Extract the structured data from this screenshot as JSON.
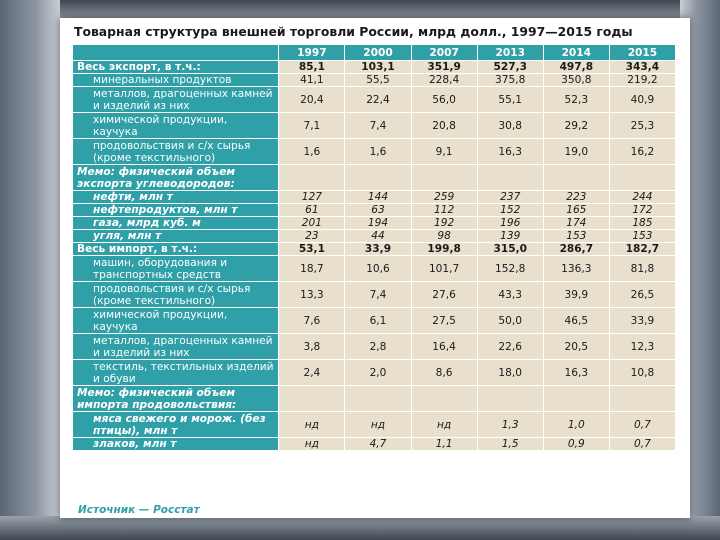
{
  "title": "Товарная структура внешней торговли России, млрд долл., 1997—2015 годы",
  "years": [
    "1997",
    "2000",
    "2007",
    "2013",
    "2014",
    "2015"
  ],
  "rows": [
    {
      "label": "Весь экспорт, в т.ч.:",
      "kind": "main",
      "values": [
        "85,1",
        "103,1",
        "351,9",
        "527,3",
        "497,8",
        "343,4"
      ]
    },
    {
      "label": "минеральных продуктов",
      "kind": "sub",
      "values": [
        "41,1",
        "55,5",
        "228,4",
        "375,8",
        "350,8",
        "219,2"
      ]
    },
    {
      "label": "металлов, драгоценных камней и изделий из них",
      "kind": "sub",
      "values": [
        "20,4",
        "22,4",
        "56,0",
        "55,1",
        "52,3",
        "40,9"
      ]
    },
    {
      "label": "химической продукции, каучука",
      "kind": "sub",
      "values": [
        "7,1",
        "7,4",
        "20,8",
        "30,8",
        "29,2",
        "25,3"
      ]
    },
    {
      "label": "продовольствия и с/х сырья (кроме текстильного)",
      "kind": "sub",
      "values": [
        "1,6",
        "1,6",
        "9,1",
        "16,3",
        "19,0",
        "16,2"
      ]
    },
    {
      "label": "Мемо: физический объем экспорта углеводородов:",
      "kind": "memo",
      "values": [
        "",
        "",
        "",
        "",
        "",
        ""
      ]
    },
    {
      "label": "нефти, млн т",
      "kind": "memosub",
      "values": [
        "127",
        "144",
        "259",
        "237",
        "223",
        "244"
      ]
    },
    {
      "label": "нефтепродуктов, млн т",
      "kind": "memosub",
      "values": [
        "61",
        "63",
        "112",
        "152",
        "165",
        "172"
      ]
    },
    {
      "label": "газа, млрд куб. м",
      "kind": "memosub",
      "values": [
        "201",
        "194",
        "192",
        "196",
        "174",
        "185"
      ]
    },
    {
      "label": "угля, млн т",
      "kind": "memosub",
      "values": [
        "23",
        "44",
        "98",
        "139",
        "153",
        "153"
      ]
    },
    {
      "label": "Весь импорт, в т.ч.:",
      "kind": "main",
      "values": [
        "53,1",
        "33,9",
        "199,8",
        "315,0",
        "286,7",
        "182,7"
      ]
    },
    {
      "label": "машин, оборудования и транспортных средств",
      "kind": "sub",
      "values": [
        "18,7",
        "10,6",
        "101,7",
        "152,8",
        "136,3",
        "81,8"
      ]
    },
    {
      "label": "продовольствия и с/х сырья (кроме текстильного)",
      "kind": "sub",
      "values": [
        "13,3",
        "7,4",
        "27,6",
        "43,3",
        "39,9",
        "26,5"
      ]
    },
    {
      "label": "химической продукции, каучука",
      "kind": "sub",
      "values": [
        "7,6",
        "6,1",
        "27,5",
        "50,0",
        "46,5",
        "33,9"
      ]
    },
    {
      "label": "металлов, драгоценных камней и изделий из них",
      "kind": "sub",
      "values": [
        "3,8",
        "2,8",
        "16,4",
        "22,6",
        "20,5",
        "12,3"
      ]
    },
    {
      "label": "текстиль, текстильных изделий и обуви",
      "kind": "sub",
      "values": [
        "2,4",
        "2,0",
        "8,6",
        "18,0",
        "16,3",
        "10,8"
      ]
    },
    {
      "label": "Мемо: физический объем импорта продовольствия:",
      "kind": "memo",
      "values": [
        "",
        "",
        "",
        "",
        "",
        ""
      ]
    },
    {
      "label": "мяса свежего и морож. (без птицы), млн т",
      "kind": "memosub",
      "values": [
        "нд",
        "нд",
        "нд",
        "1,3",
        "1,0",
        "0,7"
      ]
    },
    {
      "label": "злаков, млн т",
      "kind": "memosub",
      "values": [
        "нд",
        "4,7",
        "1,1",
        "1,5",
        "0,9",
        "0,7"
      ]
    }
  ],
  "source": "Источник — Росстат",
  "colors": {
    "header_teal": "#2fa0a8",
    "cell_beige": "#e8e0cc"
  }
}
